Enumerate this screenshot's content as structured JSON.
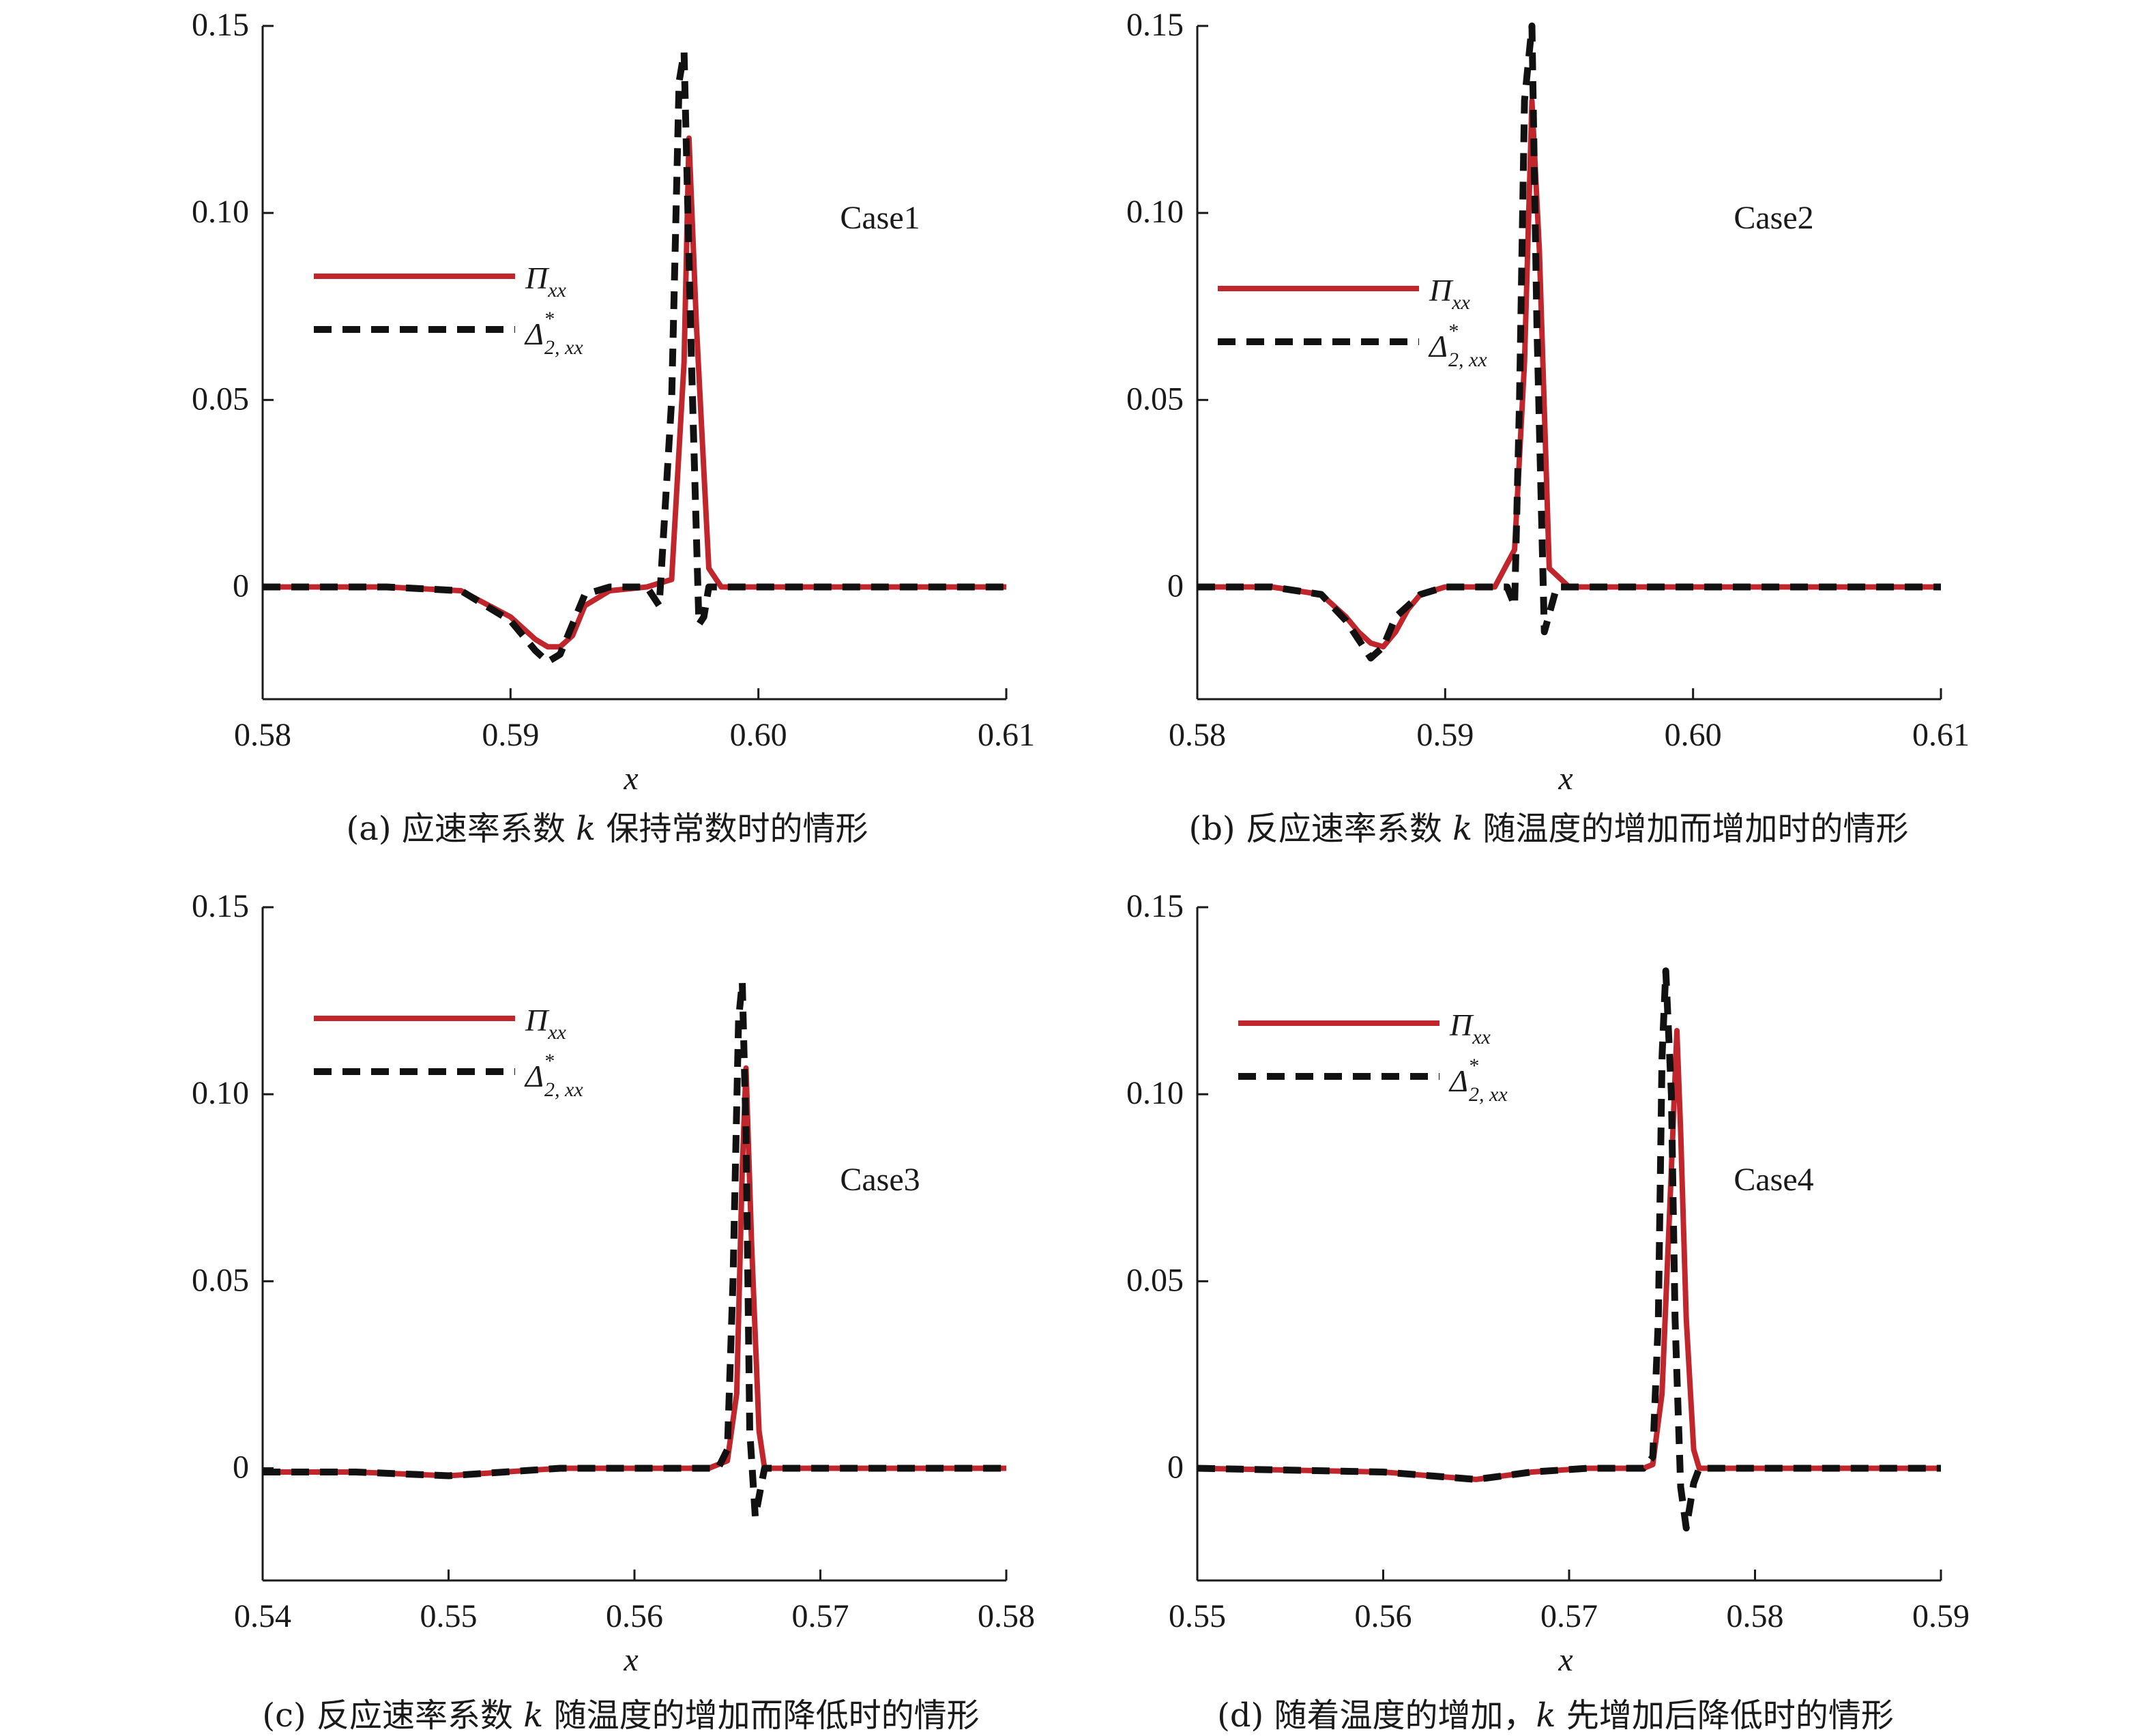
{
  "colors": {
    "pi": "#c0262c",
    "delta": "#111111",
    "axis": "#1a1a1a"
  },
  "legend": {
    "pi_main": "Π",
    "pi_sub": "xx",
    "delta_main": "Δ",
    "delta_sup": "*",
    "delta_sub": "2, xx"
  },
  "captions": [
    {
      "pre": "(a) 应速率系数 ",
      "var": "k",
      "post": " 保持常数时的情形"
    },
    {
      "pre": "(b) 反应速率系数 ",
      "var": "k",
      "post": " 随温度的增加而增加时的情形"
    },
    {
      "pre": "(c) 反应速率系数 ",
      "var": "k",
      "post": " 随温度的增加而降低时的情形"
    },
    {
      "pre": "(d) 随着温度的增加，",
      "var": "k",
      "post": " 先增加后降低时的情形"
    }
  ],
  "chart_data": [
    {
      "type": "line",
      "annotation": "Case1",
      "xlabel": "x",
      "ylabel": "",
      "xlim": [
        0.58,
        0.61
      ],
      "ylim": [
        -0.03,
        0.15
      ],
      "xticks": [
        "0.58",
        "0.59",
        "0.60",
        "0.61"
      ],
      "yticks": [
        "0",
        "0.05",
        "0.10",
        "0.15"
      ],
      "grid": false,
      "legend_position": "upper-left",
      "series": [
        {
          "name": "Π_xx",
          "style": "solid",
          "x": [
            0.58,
            0.585,
            0.588,
            0.59,
            0.591,
            0.5915,
            0.592,
            0.5925,
            0.593,
            0.594,
            0.5955,
            0.5965,
            0.597,
            0.5972,
            0.5975,
            0.598,
            0.5985,
            0.61
          ],
          "y": [
            0,
            0,
            -0.001,
            -0.008,
            -0.014,
            -0.016,
            -0.016,
            -0.013,
            -0.005,
            -0.001,
            0,
            0.002,
            0.06,
            0.12,
            0.07,
            0.005,
            0,
            0
          ]
        },
        {
          "name": "Δ*_2,xx",
          "style": "dashed",
          "x": [
            0.58,
            0.585,
            0.588,
            0.59,
            0.591,
            0.5915,
            0.592,
            0.5925,
            0.593,
            0.594,
            0.5955,
            0.596,
            0.5965,
            0.5968,
            0.597,
            0.5973,
            0.5976,
            0.5978,
            0.598,
            0.61
          ],
          "y": [
            0,
            0,
            -0.001,
            -0.009,
            -0.017,
            -0.02,
            -0.018,
            -0.01,
            -0.002,
            0,
            0,
            -0.005,
            0.05,
            0.135,
            0.143,
            0.06,
            -0.01,
            -0.008,
            0,
            0
          ]
        }
      ]
    },
    {
      "type": "line",
      "annotation": "Case2",
      "xlabel": "x",
      "ylabel": "",
      "xlim": [
        0.58,
        0.61
      ],
      "ylim": [
        -0.03,
        0.15
      ],
      "xticks": [
        "0.58",
        "0.59",
        "0.60",
        "0.61"
      ],
      "yticks": [
        "0",
        "0.05",
        "0.10",
        "0.15"
      ],
      "grid": false,
      "legend_position": "upper-left",
      "series": [
        {
          "name": "Π_xx",
          "style": "solid",
          "x": [
            0.58,
            0.583,
            0.585,
            0.586,
            0.5865,
            0.587,
            0.5875,
            0.588,
            0.5885,
            0.589,
            0.59,
            0.592,
            0.5928,
            0.5932,
            0.5935,
            0.5938,
            0.5942,
            0.595,
            0.61
          ],
          "y": [
            0,
            0,
            -0.002,
            -0.008,
            -0.012,
            -0.015,
            -0.016,
            -0.012,
            -0.006,
            -0.002,
            0,
            0,
            0.01,
            0.06,
            0.13,
            0.09,
            0.005,
            0,
            0
          ]
        },
        {
          "name": "Δ*_2,xx",
          "style": "dashed",
          "x": [
            0.58,
            0.583,
            0.585,
            0.586,
            0.5865,
            0.587,
            0.5875,
            0.588,
            0.589,
            0.59,
            0.5925,
            0.5928,
            0.593,
            0.5932,
            0.5935,
            0.5937,
            0.594,
            0.5945,
            0.61
          ],
          "y": [
            0,
            0,
            -0.002,
            -0.009,
            -0.014,
            -0.019,
            -0.016,
            -0.008,
            -0.002,
            0,
            0,
            -0.005,
            0.05,
            0.13,
            0.15,
            0.07,
            -0.012,
            0,
            0
          ]
        }
      ]
    },
    {
      "type": "line",
      "annotation": "Case3",
      "xlabel": "x",
      "ylabel": "",
      "xlim": [
        0.54,
        0.58
      ],
      "ylim": [
        -0.03,
        0.15
      ],
      "xticks": [
        "0.54",
        "0.55",
        "0.56",
        "0.57",
        "0.58"
      ],
      "yticks": [
        "0",
        "0.05",
        "0.10",
        "0.15"
      ],
      "grid": false,
      "legend_position": "upper-left",
      "series": [
        {
          "name": "Π_xx",
          "style": "solid",
          "x": [
            0.54,
            0.545,
            0.55,
            0.553,
            0.556,
            0.56,
            0.564,
            0.565,
            0.5655,
            0.5658,
            0.566,
            0.5663,
            0.5667,
            0.567,
            0.58
          ],
          "y": [
            -0.001,
            -0.001,
            -0.002,
            -0.001,
            0,
            0,
            0,
            0.002,
            0.02,
            0.08,
            0.107,
            0.06,
            0.01,
            0,
            0
          ]
        },
        {
          "name": "Δ*_2,xx",
          "style": "dashed",
          "x": [
            0.54,
            0.545,
            0.55,
            0.553,
            0.556,
            0.56,
            0.5645,
            0.565,
            0.5653,
            0.5656,
            0.5658,
            0.566,
            0.5662,
            0.5665,
            0.5668,
            0.567,
            0.58
          ],
          "y": [
            -0.001,
            -0.001,
            -0.002,
            -0.001,
            0,
            0,
            0,
            0.005,
            0.05,
            0.12,
            0.13,
            0.09,
            0.01,
            -0.013,
            -0.005,
            0,
            0
          ]
        }
      ]
    },
    {
      "type": "line",
      "annotation": "Case4",
      "xlabel": "x",
      "ylabel": "",
      "xlim": [
        0.55,
        0.59
      ],
      "ylim": [
        -0.03,
        0.15
      ],
      "xticks": [
        "0.55",
        "0.56",
        "0.57",
        "0.58",
        "0.59"
      ],
      "yticks": [
        "0",
        "0.05",
        "0.10",
        "0.15"
      ],
      "grid": false,
      "legend_position": "upper-left",
      "series": [
        {
          "name": "Π_xx",
          "style": "solid",
          "x": [
            0.55,
            0.56,
            0.565,
            0.568,
            0.571,
            0.574,
            0.5745,
            0.575,
            0.5755,
            0.5758,
            0.576,
            0.5763,
            0.5767,
            0.577,
            0.59
          ],
          "y": [
            0,
            -0.001,
            -0.003,
            -0.001,
            0,
            0,
            0.001,
            0.02,
            0.08,
            0.117,
            0.09,
            0.04,
            0.005,
            0,
            0
          ]
        },
        {
          "name": "Δ*_2,xx",
          "style": "dashed",
          "x": [
            0.55,
            0.56,
            0.565,
            0.568,
            0.571,
            0.574,
            0.5745,
            0.5748,
            0.575,
            0.5752,
            0.5755,
            0.5757,
            0.576,
            0.5763,
            0.5767,
            0.577,
            0.59
          ],
          "y": [
            0,
            -0.001,
            -0.003,
            -0.001,
            0,
            0,
            0.003,
            0.04,
            0.11,
            0.133,
            0.1,
            0.04,
            -0.005,
            -0.016,
            -0.004,
            0,
            0
          ]
        }
      ]
    }
  ]
}
